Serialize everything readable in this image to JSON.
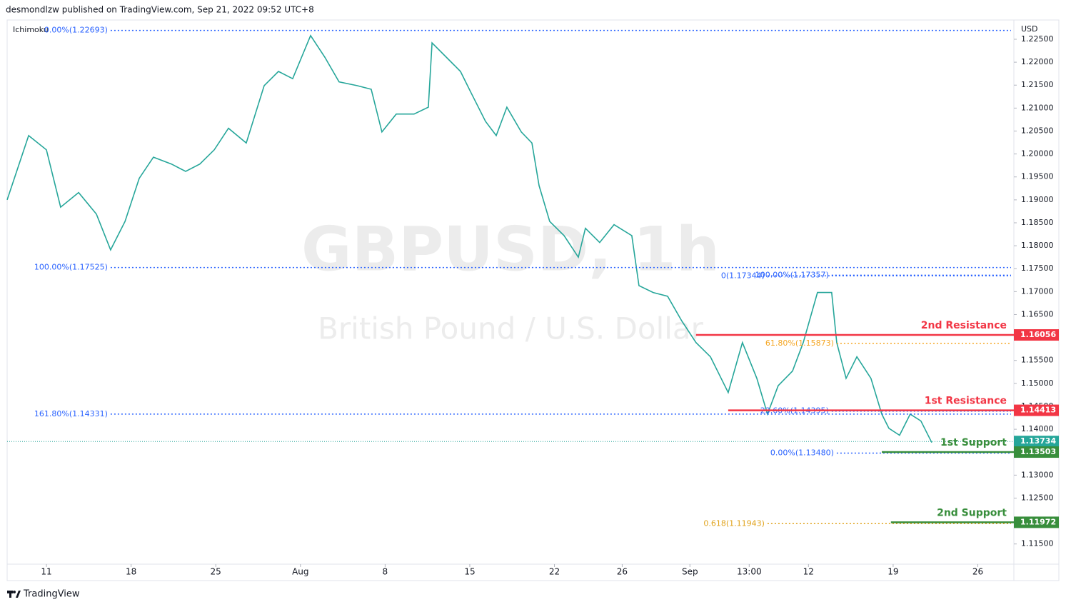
{
  "header": "desmondlzw published on TradingView.com, Sep 21, 2022 09:52 UTC+8",
  "footer": "TradingView",
  "chart_data": {
    "type": "line",
    "symbol": "GBPUSD, 1h",
    "description": "British Pound / U.S. Dollar",
    "indicator": "Ichimoku",
    "currency": "USD",
    "color": "#26a69a",
    "x": [
      -2.32,
      -1.05,
      0,
      0.84,
      1.9,
      2.95,
      3.79,
      4.64,
      5.48,
      6.32,
      7.38,
      8.22,
      9.06,
      9.91,
      10.75,
      11.8,
      12.86,
      13.7,
      14.54,
      15.6,
      16.44,
      17.28,
      18.34,
      19.18,
      19.81,
      20.66,
      21.71,
      22.55,
      22.77,
      23.61,
      24.45,
      25.08,
      25.93,
      26.56,
      27.19,
      28.04,
      28.67,
      29.09,
      29.72,
      30.57,
      31.41,
      31.83,
      32.67,
      33.52,
      34.57,
      34.99,
      35.83,
      36.68,
      37.52,
      38.36,
      39.21,
      40.26,
      41.1,
      41.95,
      42.58,
      43.21,
      44.06,
      44.69,
      45.53,
      46.37,
      46.67,
      47.22,
      47.86,
      48.69,
      49.33,
      49.75,
      50.38,
      51.01,
      51.64,
      52.28
    ],
    "values": [
      1.19,
      1.204,
      1.2009,
      1.1884,
      1.1916,
      1.1869,
      1.1791,
      1.1853,
      1.1947,
      1.1993,
      1.1978,
      1.1962,
      1.1978,
      1.2009,
      1.2056,
      1.2024,
      1.2149,
      1.218,
      1.2164,
      1.2258,
      1.2211,
      1.2157,
      1.2149,
      1.2141,
      1.2048,
      1.2087,
      1.2087,
      1.2102,
      1.2242,
      1.2211,
      1.218,
      1.2133,
      1.2071,
      1.204,
      1.2102,
      1.2048,
      1.2024,
      1.1931,
      1.1853,
      1.1822,
      1.1775,
      1.1838,
      1.1807,
      1.1846,
      1.1822,
      1.1713,
      1.1698,
      1.169,
      1.1636,
      1.1589,
      1.1558,
      1.148,
      1.1589,
      1.1511,
      1.1433,
      1.1495,
      1.1527,
      1.1589,
      1.1698,
      1.1698,
      1.1589,
      1.1511,
      1.1558,
      1.1511,
      1.1433,
      1.1402,
      1.1387,
      1.1433,
      1.1418,
      1.1371
    ],
    "xlim": [
      -2.32,
      57.13
    ],
    "xticks": [
      {
        "value": 0,
        "label": "11"
      },
      {
        "value": 5,
        "label": "18"
      },
      {
        "value": 10,
        "label": "25"
      },
      {
        "value": 15,
        "label": "Aug"
      },
      {
        "value": 20,
        "label": "8"
      },
      {
        "value": 25,
        "label": "15"
      },
      {
        "value": 30,
        "label": "22"
      },
      {
        "value": 34,
        "label": "26"
      },
      {
        "value": 38,
        "label": "Sep"
      },
      {
        "value": 41.5,
        "label": "13:00"
      },
      {
        "value": 45,
        "label": "12"
      },
      {
        "value": 50,
        "label": "19"
      },
      {
        "value": 55,
        "label": "26"
      }
    ],
    "ylim": [
      1.1106,
      1.2292
    ],
    "yticks": [
      {
        "value": 1.225,
        "label": "1.22500"
      },
      {
        "value": 1.22,
        "label": "1.22000"
      },
      {
        "value": 1.215,
        "label": "1.21500"
      },
      {
        "value": 1.21,
        "label": "1.21000"
      },
      {
        "value": 1.205,
        "label": "1.20500"
      },
      {
        "value": 1.2,
        "label": "1.20000"
      },
      {
        "value": 1.195,
        "label": "1.19500"
      },
      {
        "value": 1.19,
        "label": "1.19000"
      },
      {
        "value": 1.185,
        "label": "1.18500"
      },
      {
        "value": 1.18,
        "label": "1.18000"
      },
      {
        "value": 1.175,
        "label": "1.17500"
      },
      {
        "value": 1.17,
        "label": "1.17000"
      },
      {
        "value": 1.165,
        "label": "1.16500"
      },
      {
        "value": 1.16,
        "label": "1.16000"
      },
      {
        "value": 1.155,
        "label": "1.15500"
      },
      {
        "value": 1.15,
        "label": "1.15000"
      },
      {
        "value": 1.145,
        "label": "1.14500"
      },
      {
        "value": 1.14,
        "label": "1.14000"
      },
      {
        "value": 1.135,
        "label": "1.13500"
      },
      {
        "value": 1.13,
        "label": "1.13000"
      },
      {
        "value": 1.125,
        "label": "1.12500"
      },
      {
        "value": 1.12,
        "label": "1.12000"
      },
      {
        "value": 1.115,
        "label": "1.11500"
      }
    ],
    "fib_levels": [
      {
        "label": "0.00%(1.22693)",
        "value": 1.22693,
        "x": 3.79,
        "color": "#2962ff"
      },
      {
        "label": "100.00%(1.17525)",
        "value": 1.17525,
        "x": 3.79,
        "color": "#2962ff"
      },
      {
        "label": "161.80%(1.14331)",
        "value": 1.14331,
        "x": 3.79,
        "color": "#2962ff"
      },
      {
        "label": "100.00%(1.17357)",
        "value": 1.17357,
        "x": 46.37,
        "color": "#2962ff"
      },
      {
        "label": "0(1.17344)",
        "value": 1.17344,
        "x": 42.58,
        "color": "#2962ff"
      },
      {
        "label": "61.80%(1.15873)",
        "value": 1.15873,
        "x": 46.67,
        "color": "#f5a623"
      },
      {
        "label": "23.60%(1.14395)",
        "value": 1.14395,
        "x": 46.37,
        "color": "#2962ff"
      },
      {
        "label": "0.00%(1.13480)",
        "value": 1.1348,
        "x": 46.67,
        "color": "#2962ff"
      },
      {
        "label": "0.618(1.11943)",
        "value": 1.11943,
        "x": 42.58,
        "color": "#e0a21a"
      }
    ],
    "levels": [
      {
        "label": "2nd Resistance",
        "value": 1.16056,
        "value_label": "1.16056",
        "x": 38.36,
        "color": "#f23645"
      },
      {
        "label": "1st Resistance",
        "value": 1.14413,
        "value_label": "1.14413",
        "x": 40.26,
        "color": "#f23645"
      },
      {
        "label": "1st Support",
        "value": 1.13503,
        "value_label": "1.13503",
        "x": 49.33,
        "color": "#388e3c"
      },
      {
        "label": "2nd Support",
        "value": 1.11972,
        "value_label": "1.11972",
        "x": 49.87,
        "color": "#388e3c"
      }
    ],
    "last": {
      "value": 1.13734,
      "value_label": "1.13734",
      "color": "#26a69a"
    }
  }
}
